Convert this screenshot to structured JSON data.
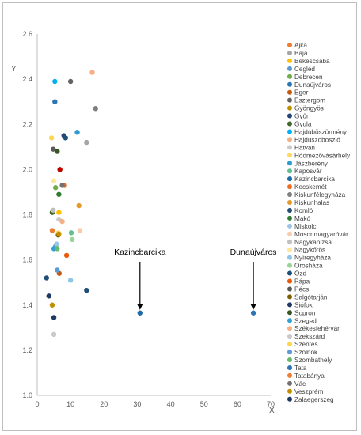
{
  "chart_data": {
    "type": "scatter",
    "xlabel": "X",
    "ylabel": "Y",
    "xlim": [
      0,
      70
    ],
    "ylim": [
      1,
      2.6
    ],
    "xticks": [
      0,
      10,
      20,
      30,
      40,
      50,
      60,
      70
    ],
    "yticks": [
      1,
      1.2,
      1.4,
      1.6,
      1.8,
      2,
      2.2,
      2.4,
      2.6
    ],
    "grid": "none",
    "legend_position": "right",
    "series": [
      {
        "name": "Ajka",
        "color": "#ED7D31",
        "x": 4.5,
        "y": 1.73
      },
      {
        "name": "Baja",
        "color": "#A5A5A5",
        "x": 14.8,
        "y": 2.12
      },
      {
        "name": "Békéscsaba",
        "color": "#FFC000",
        "x": 6.5,
        "y": 1.81
      },
      {
        "name": "Cegléd",
        "color": "#5B9BD5",
        "x": 5.5,
        "y": 1.66
      },
      {
        "name": "Debrecen",
        "color": "#70AD47",
        "x": 5.5,
        "y": 1.92
      },
      {
        "name": "Dunaújváros",
        "color": "#2E75B6",
        "x": 64.8,
        "y": 1.365
      },
      {
        "name": "Eger",
        "color": "#C55A11",
        "x": 6.6,
        "y": 1.54
      },
      {
        "name": "Esztergom",
        "color": "#636363",
        "x": 10.0,
        "y": 2.39
      },
      {
        "name": "Gyöngyös",
        "color": "#BF9000",
        "x": 4.5,
        "y": 1.4
      },
      {
        "name": "Győr",
        "color": "#264478",
        "x": 8.0,
        "y": 2.15
      },
      {
        "name": "Gyula",
        "color": "#43682B",
        "x": 4.5,
        "y": 1.81
      },
      {
        "name": "Hajdúböszörmény",
        "color": "#00B0F0",
        "x": 5.3,
        "y": 2.39
      },
      {
        "name": "Hajdúszoboszló",
        "color": "#F4B183",
        "x": 16.5,
        "y": 2.43
      },
      {
        "name": "Hatvan",
        "color": "#C9C9C9",
        "x": 6.5,
        "y": 1.78
      },
      {
        "name": "Hódmezővásárhely",
        "color": "#FFD966",
        "x": 6.3,
        "y": 1.72
      },
      {
        "name": "Jászberény",
        "color": "#2E9BD5",
        "x": 12.0,
        "y": 2.165
      },
      {
        "name": "Kaposvár",
        "color": "#5FBF8F",
        "x": 10.2,
        "y": 1.72
      },
      {
        "name": "Kazincbarcika",
        "color": "#1F6BA5",
        "x": 30.8,
        "y": 1.365
      },
      {
        "name": "Kecskemét",
        "color": "#F26B21",
        "x": 8.2,
        "y": 1.93
      },
      {
        "name": "Kiskunfélegyháza",
        "color": "#7F7F7F",
        "x": 17.5,
        "y": 2.27
      },
      {
        "name": "Kiskunhalas",
        "color": "#E39A2D",
        "x": 12.5,
        "y": 1.84
      },
      {
        "name": "Komló",
        "color": "#1F4E79",
        "x": 8.5,
        "y": 2.14
      },
      {
        "name": "Makó",
        "color": "#2E7D32",
        "x": 6.5,
        "y": 1.89
      },
      {
        "name": "Miskolc",
        "color": "#9DC3E6",
        "x": 5.8,
        "y": 1.67
      },
      {
        "name": "Mosonmagyaróvár",
        "color": "#F8CBAD",
        "x": 12.8,
        "y": 1.73
      },
      {
        "name": "Nagykanizsa",
        "color": "#BFBFBF",
        "x": 4.8,
        "y": 1.82
      },
      {
        "name": "Nagykőrös",
        "color": "#FFE699",
        "x": 5.0,
        "y": 1.95
      },
      {
        "name": "Nyíregyháza",
        "color": "#8FC6E8",
        "x": 10.0,
        "y": 1.51
      },
      {
        "name": "Orosháza",
        "color": "#9BD39B",
        "x": 10.5,
        "y": 1.69
      },
      {
        "name": "Ózd",
        "color": "#1F4E79",
        "x": 2.8,
        "y": 1.52
      },
      {
        "name": "Pápa",
        "color": "#E8590C",
        "x": 8.8,
        "y": 1.62
      },
      {
        "name": "Pécs",
        "color": "#595959",
        "x": 4.8,
        "y": 2.09
      },
      {
        "name": "Salgótarján",
        "color": "#7F6000",
        "x": 6.3,
        "y": 1.71
      },
      {
        "name": "Siófok",
        "color": "#203864",
        "x": 3.5,
        "y": 1.44
      },
      {
        "name": "Sopron",
        "color": "#375623",
        "x": 6.0,
        "y": 2.08
      },
      {
        "name": "Szeged",
        "color": "#33A0D5",
        "x": 5.0,
        "y": 1.65
      },
      {
        "name": "Székesfehérvár",
        "color": "#F4B183",
        "x": 7.5,
        "y": 1.77
      },
      {
        "name": "Szekszárd",
        "color": "#C9C9C9",
        "x": 5.0,
        "y": 1.27
      },
      {
        "name": "Szentes",
        "color": "#FFD54F",
        "x": 4.3,
        "y": 2.14
      },
      {
        "name": "Szolnok",
        "color": "#5B9BD5",
        "x": 6.0,
        "y": 1.555
      },
      {
        "name": "Szombathely",
        "color": "#66BB6A",
        "x": 6.0,
        "y": 1.65
      },
      {
        "name": "Tata",
        "color": "#2E75B6",
        "x": 5.3,
        "y": 2.3
      },
      {
        "name": "Tatabánya",
        "color": "#ED7D31",
        "x": 6.8,
        "y": 2.0
      },
      {
        "name": "Vác",
        "color": "#767171",
        "x": 7.5,
        "y": 1.93
      },
      {
        "name": "Veszprém",
        "color": "#BF8F00",
        "x": 6.5,
        "y": 1.715
      },
      {
        "name": "Zalaegerszeg",
        "color": "#203864",
        "x": 5.0,
        "y": 1.345
      },
      {
        "name": "",
        "color": "#1F4E79",
        "x": 14.8,
        "y": 1.465
      },
      {
        "name": "",
        "color": "#C00000",
        "x": 6.8,
        "y": 2.0
      }
    ],
    "annotations": [
      {
        "text": "Kazincbarcika",
        "x": 30.8,
        "y": 1.365
      },
      {
        "text": "Dunaújváros",
        "x": 64.8,
        "y": 1.365
      }
    ]
  }
}
